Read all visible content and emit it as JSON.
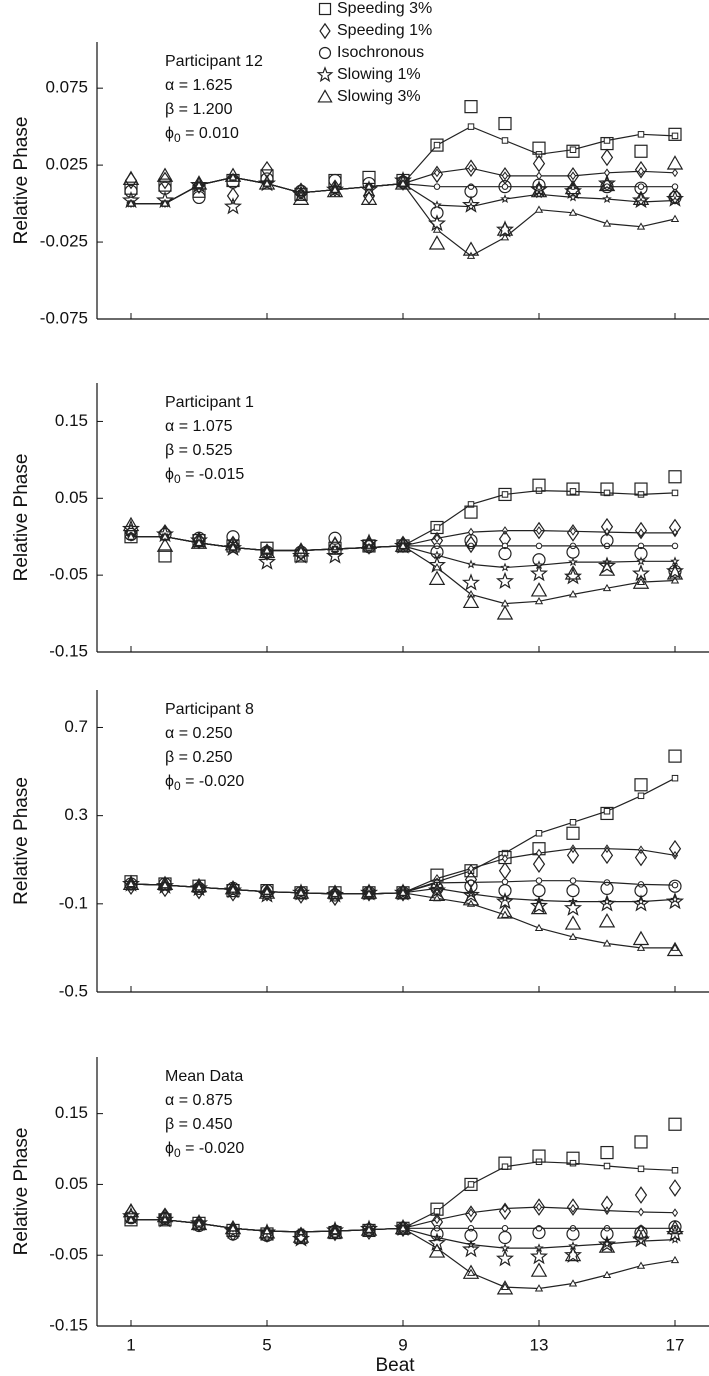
{
  "chart_data": [
    {
      "type": "line",
      "ylabel": "Relative Phase",
      "legend": true,
      "show_xtick_labels": false,
      "annotation": {
        "title": "Participant 12",
        "alpha": "α = 1.625",
        "beta": "β = 1.200",
        "phi": "ϕ",
        "phi_subscript": "0",
        "phi_value": " = 0.010"
      },
      "x": [
        1,
        2,
        3,
        4,
        5,
        6,
        7,
        8,
        9,
        10,
        11,
        12,
        13,
        14,
        15,
        16,
        17
      ],
      "xlim": [
        0,
        18
      ],
      "xticks": [
        1,
        5,
        9,
        13,
        17
      ],
      "ylim": [
        -0.075,
        0.105
      ],
      "yticks": [
        -0.075,
        -0.025,
        0.025,
        0.075
      ],
      "series": [
        {
          "name": "Speeding 3%",
          "marker": "square",
          "color": "#222",
          "values": [
            0.01,
            0.012,
            0.008,
            0.015,
            0.018,
            0.006,
            0.015,
            0.017,
            0.015,
            0.038,
            0.063,
            0.052,
            0.036,
            0.034,
            0.039,
            0.034,
            0.045
          ],
          "model": [
            0.0,
            0.0,
            0.012,
            0.017,
            0.013,
            0.007,
            0.009,
            0.011,
            0.013,
            0.038,
            0.05,
            0.041,
            0.032,
            0.035,
            0.041,
            0.045,
            0.044
          ]
        },
        {
          "name": "Speeding 1%",
          "marker": "diamond",
          "color": "#222",
          "values": [
            0.015,
            0.015,
            0.012,
            0.005,
            0.022,
            0.008,
            0.01,
            0.005,
            0.014,
            0.019,
            0.023,
            0.018,
            0.026,
            0.018,
            0.03,
            0.022,
            0.005
          ],
          "model": [
            0.0,
            0.0,
            0.012,
            0.017,
            0.013,
            0.007,
            0.009,
            0.011,
            0.013,
            0.02,
            0.023,
            0.018,
            0.018,
            0.018,
            0.02,
            0.021,
            0.02
          ]
        },
        {
          "name": "Isochronous",
          "marker": "circle",
          "color": "#222",
          "values": [
            0.008,
            0.01,
            0.004,
            0.014,
            0.016,
            0.008,
            0.015,
            0.013,
            0.014,
            -0.006,
            0.008,
            0.011,
            0.012,
            0.008,
            0.011,
            0.01,
            0.004
          ],
          "model": [
            0.0,
            0.0,
            0.012,
            0.017,
            0.013,
            0.007,
            0.009,
            0.011,
            0.013,
            0.011,
            0.011,
            0.011,
            0.011,
            0.011,
            0.011,
            0.011,
            0.011
          ]
        },
        {
          "name": "Slowing 1%",
          "marker": "star",
          "color": "#222",
          "values": [
            0.002,
            0.002,
            0.012,
            -0.002,
            0.013,
            0.006,
            0.009,
            0.009,
            0.015,
            -0.013,
            -0.001,
            -0.017,
            0.009,
            0.008,
            0.013,
            0.002,
            0.003
          ],
          "model": [
            0.0,
            0.0,
            0.012,
            0.017,
            0.013,
            0.007,
            0.009,
            0.011,
            0.013,
            -0.001,
            -0.002,
            0.003,
            0.006,
            0.004,
            0.003,
            0.001,
            0.002
          ]
        },
        {
          "name": "Slowing 3%",
          "marker": "triangle",
          "color": "#222",
          "values": [
            0.016,
            0.018,
            0.013,
            0.018,
            0.013,
            0.003,
            0.008,
            0.003,
            0.013,
            -0.026,
            -0.03,
            -0.017,
            0.008,
            0.01,
            0.012,
            0.003,
            0.026
          ],
          "model": [
            0.0,
            0.0,
            0.012,
            0.017,
            0.013,
            0.007,
            0.009,
            0.011,
            0.013,
            -0.017,
            -0.034,
            -0.022,
            -0.004,
            -0.006,
            -0.013,
            -0.015,
            -0.01
          ]
        }
      ]
    },
    {
      "type": "line",
      "ylabel": "Relative Phase",
      "legend": false,
      "show_xtick_labels": false,
      "annotation": {
        "title": "Participant 1",
        "alpha": "α = 1.075",
        "beta": "β = 0.525",
        "phi": "ϕ",
        "phi_subscript": "0",
        "phi_value": " = -0.015"
      },
      "x": [
        1,
        2,
        3,
        4,
        5,
        6,
        7,
        8,
        9,
        10,
        11,
        12,
        13,
        14,
        15,
        16,
        17
      ],
      "xlim": [
        0,
        18
      ],
      "xticks": [
        1,
        5,
        9,
        13,
        17
      ],
      "ylim": [
        -0.15,
        0.2
      ],
      "yticks": [
        -0.15,
        -0.05,
        0.05,
        0.15
      ],
      "series": [
        {
          "marker": "square",
          "color": "#222",
          "values": [
            0.0,
            -0.025,
            -0.005,
            -0.012,
            -0.015,
            -0.025,
            -0.015,
            -0.012,
            -0.012,
            0.012,
            0.032,
            0.055,
            0.067,
            0.062,
            0.062,
            0.062,
            0.078
          ],
          "model": [
            0.0,
            0.0,
            -0.008,
            -0.014,
            -0.018,
            -0.018,
            -0.016,
            -0.014,
            -0.012,
            0.012,
            0.042,
            0.055,
            0.06,
            0.059,
            0.057,
            0.055,
            0.057
          ]
        },
        {
          "marker": "diamond",
          "color": "#222",
          "values": [
            0.005,
            0.005,
            -0.005,
            -0.01,
            -0.02,
            -0.02,
            -0.012,
            -0.012,
            -0.01,
            -0.005,
            -0.01,
            -0.003,
            0.008,
            0.005,
            0.013,
            0.008,
            0.012
          ],
          "model": [
            0.0,
            0.0,
            -0.008,
            -0.014,
            -0.018,
            -0.018,
            -0.016,
            -0.014,
            -0.012,
            -0.002,
            0.006,
            0.008,
            0.008,
            0.007,
            0.006,
            0.005,
            0.005
          ]
        },
        {
          "marker": "circle",
          "color": "#222",
          "values": [
            0.003,
            0.003,
            -0.002,
            0.0,
            -0.02,
            -0.02,
            -0.002,
            -0.013,
            -0.012,
            -0.02,
            -0.005,
            -0.022,
            -0.03,
            -0.02,
            -0.005,
            -0.022,
            -0.045
          ],
          "model": [
            0.0,
            0.0,
            -0.008,
            -0.014,
            -0.018,
            -0.018,
            -0.016,
            -0.014,
            -0.012,
            -0.012,
            -0.012,
            -0.012,
            -0.012,
            -0.012,
            -0.012,
            -0.012,
            -0.012
          ]
        },
        {
          "marker": "star",
          "color": "#222",
          "values": [
            0.01,
            0.003,
            -0.005,
            -0.015,
            -0.033,
            -0.025,
            -0.025,
            -0.008,
            -0.012,
            -0.037,
            -0.06,
            -0.058,
            -0.048,
            -0.052,
            -0.038,
            -0.048,
            -0.045
          ],
          "model": [
            0.0,
            0.0,
            -0.008,
            -0.014,
            -0.018,
            -0.018,
            -0.016,
            -0.014,
            -0.012,
            -0.024,
            -0.036,
            -0.04,
            -0.037,
            -0.033,
            -0.033,
            -0.032,
            -0.032
          ]
        },
        {
          "marker": "triangle",
          "color": "#222",
          "values": [
            0.015,
            -0.012,
            -0.008,
            -0.01,
            -0.02,
            -0.018,
            -0.01,
            -0.008,
            -0.012,
            -0.055,
            -0.085,
            -0.1,
            -0.07,
            -0.048,
            -0.043,
            -0.06,
            -0.048
          ],
          "model": [
            0.0,
            0.0,
            -0.008,
            -0.014,
            -0.018,
            -0.018,
            -0.016,
            -0.014,
            -0.012,
            -0.04,
            -0.075,
            -0.087,
            -0.084,
            -0.075,
            -0.067,
            -0.059,
            -0.057
          ]
        }
      ]
    },
    {
      "type": "line",
      "ylabel": "Relative Phase",
      "legend": false,
      "show_xtick_labels": false,
      "annotation": {
        "title": "Participant 8",
        "alpha": "α = 0.250",
        "beta": "β = 0.250",
        "phi": "ϕ",
        "phi_subscript": "0",
        "phi_value": " = -0.020"
      },
      "x": [
        1,
        2,
        3,
        4,
        5,
        6,
        7,
        8,
        9,
        10,
        11,
        12,
        13,
        14,
        15,
        16,
        17
      ],
      "xlim": [
        0,
        18
      ],
      "xticks": [
        1,
        5,
        9,
        13,
        17
      ],
      "ylim": [
        -0.5,
        0.87
      ],
      "yticks": [
        -0.5,
        -0.1,
        0.3,
        0.7
      ],
      "series": [
        {
          "marker": "square",
          "color": "#222",
          "values": [
            0.0,
            -0.01,
            -0.02,
            -0.04,
            -0.04,
            -0.05,
            -0.05,
            -0.05,
            -0.05,
            0.03,
            0.05,
            0.11,
            0.15,
            0.22,
            0.31,
            0.44,
            0.57
          ],
          "model": [
            -0.01,
            -0.015,
            -0.025,
            -0.035,
            -0.045,
            -0.05,
            -0.055,
            -0.055,
            -0.05,
            0.0,
            0.05,
            0.13,
            0.22,
            0.27,
            0.32,
            0.39,
            0.47
          ]
        },
        {
          "marker": "diamond",
          "color": "#222",
          "values": [
            -0.02,
            -0.03,
            -0.04,
            -0.05,
            -0.05,
            -0.06,
            -0.07,
            -0.05,
            -0.05,
            -0.02,
            0.01,
            0.05,
            0.08,
            0.12,
            0.12,
            0.11,
            0.15
          ],
          "model": [
            -0.01,
            -0.015,
            -0.025,
            -0.035,
            -0.045,
            -0.05,
            -0.055,
            -0.055,
            -0.05,
            0.015,
            0.06,
            0.105,
            0.13,
            0.15,
            0.15,
            0.145,
            0.12
          ]
        },
        {
          "marker": "circle",
          "color": "#222",
          "values": [
            -0.01,
            -0.01,
            -0.03,
            -0.03,
            -0.04,
            -0.05,
            -0.06,
            -0.05,
            -0.05,
            -0.03,
            -0.02,
            -0.04,
            -0.04,
            -0.04,
            -0.03,
            -0.04,
            -0.02
          ],
          "model": [
            -0.01,
            -0.015,
            -0.025,
            -0.035,
            -0.045,
            -0.05,
            -0.055,
            -0.055,
            -0.05,
            -0.005,
            -0.003,
            0.0,
            0.005,
            0.005,
            -0.003,
            -0.012,
            -0.015
          ]
        },
        {
          "marker": "star",
          "color": "#222",
          "values": [
            -0.01,
            -0.02,
            -0.03,
            -0.04,
            -0.06,
            -0.05,
            -0.06,
            -0.05,
            -0.05,
            -0.04,
            -0.06,
            -0.09,
            -0.11,
            -0.12,
            -0.1,
            -0.1,
            -0.09
          ],
          "model": [
            -0.01,
            -0.015,
            -0.025,
            -0.035,
            -0.045,
            -0.05,
            -0.055,
            -0.055,
            -0.05,
            -0.03,
            -0.055,
            -0.075,
            -0.085,
            -0.09,
            -0.09,
            -0.09,
            -0.08
          ]
        },
        {
          "marker": "triangle",
          "color": "#222",
          "values": [
            -0.01,
            -0.01,
            -0.02,
            -0.03,
            -0.05,
            -0.05,
            -0.05,
            -0.05,
            -0.05,
            -0.06,
            -0.08,
            -0.14,
            -0.12,
            -0.19,
            -0.18,
            -0.26,
            -0.31
          ],
          "model": [
            -0.01,
            -0.015,
            -0.025,
            -0.035,
            -0.045,
            -0.05,
            -0.055,
            -0.055,
            -0.05,
            -0.075,
            -0.1,
            -0.15,
            -0.21,
            -0.25,
            -0.28,
            -0.3,
            -0.3
          ]
        }
      ]
    },
    {
      "type": "line",
      "ylabel": "Relative Phase",
      "xlabel": "Beat",
      "legend": false,
      "show_xtick_labels": true,
      "annotation": {
        "title": "Mean Data",
        "alpha": "α = 0.875",
        "beta": "β = 0.450",
        "phi": "ϕ",
        "phi_subscript": "0",
        "phi_value": " = -0.020"
      },
      "x": [
        1,
        2,
        3,
        4,
        5,
        6,
        7,
        8,
        9,
        10,
        11,
        12,
        13,
        14,
        15,
        16,
        17
      ],
      "xlim": [
        0,
        18
      ],
      "xticks": [
        1,
        5,
        9,
        13,
        17
      ],
      "ylim": [
        -0.15,
        0.23
      ],
      "yticks": [
        -0.15,
        -0.05,
        0.05,
        0.15
      ],
      "series": [
        {
          "marker": "square",
          "color": "#222",
          "values": [
            0.0,
            0.0,
            -0.005,
            -0.015,
            -0.02,
            -0.025,
            -0.018,
            -0.015,
            -0.012,
            0.015,
            0.05,
            0.08,
            0.09,
            0.087,
            0.095,
            0.11,
            0.135
          ],
          "model": [
            0.0,
            0.0,
            -0.005,
            -0.012,
            -0.016,
            -0.017,
            -0.016,
            -0.014,
            -0.012,
            0.012,
            0.05,
            0.075,
            0.082,
            0.08,
            0.076,
            0.072,
            0.07
          ]
        },
        {
          "marker": "diamond",
          "color": "#222",
          "values": [
            0.01,
            0.005,
            -0.005,
            -0.018,
            -0.02,
            -0.022,
            -0.018,
            -0.016,
            -0.012,
            -0.003,
            0.008,
            0.012,
            0.018,
            0.018,
            0.022,
            0.035,
            0.045
          ],
          "model": [
            0.0,
            0.0,
            -0.005,
            -0.012,
            -0.016,
            -0.017,
            -0.016,
            -0.014,
            -0.012,
            0.0,
            0.01,
            0.016,
            0.018,
            0.016,
            0.013,
            0.011,
            0.01
          ]
        },
        {
          "marker": "circle",
          "color": "#222",
          "values": [
            0.003,
            0.002,
            -0.008,
            -0.02,
            -0.022,
            -0.022,
            -0.016,
            -0.014,
            -0.012,
            -0.02,
            -0.022,
            -0.025,
            -0.018,
            -0.02,
            -0.02,
            -0.018,
            -0.01
          ],
          "model": [
            0.0,
            0.0,
            -0.005,
            -0.012,
            -0.016,
            -0.017,
            -0.016,
            -0.014,
            -0.012,
            -0.012,
            -0.012,
            -0.012,
            -0.012,
            -0.012,
            -0.012,
            -0.012,
            -0.012
          ]
        },
        {
          "marker": "star",
          "color": "#222",
          "values": [
            0.005,
            0.0,
            -0.005,
            -0.016,
            -0.018,
            -0.027,
            -0.015,
            -0.013,
            -0.012,
            -0.033,
            -0.042,
            -0.055,
            -0.052,
            -0.05,
            -0.035,
            -0.028,
            -0.02
          ],
          "model": [
            0.0,
            0.0,
            -0.005,
            -0.012,
            -0.016,
            -0.017,
            -0.016,
            -0.014,
            -0.012,
            -0.025,
            -0.035,
            -0.04,
            -0.04,
            -0.037,
            -0.034,
            -0.03,
            -0.028
          ]
        },
        {
          "marker": "triangle",
          "color": "#222",
          "values": [
            0.012,
            0.005,
            -0.006,
            -0.012,
            -0.018,
            -0.024,
            -0.018,
            -0.014,
            -0.012,
            -0.045,
            -0.075,
            -0.097,
            -0.072,
            -0.05,
            -0.038,
            -0.018,
            -0.012
          ],
          "model": [
            0.0,
            0.0,
            -0.005,
            -0.012,
            -0.016,
            -0.017,
            -0.016,
            -0.014,
            -0.012,
            -0.04,
            -0.075,
            -0.095,
            -0.097,
            -0.09,
            -0.078,
            -0.065,
            -0.057
          ]
        }
      ]
    }
  ]
}
